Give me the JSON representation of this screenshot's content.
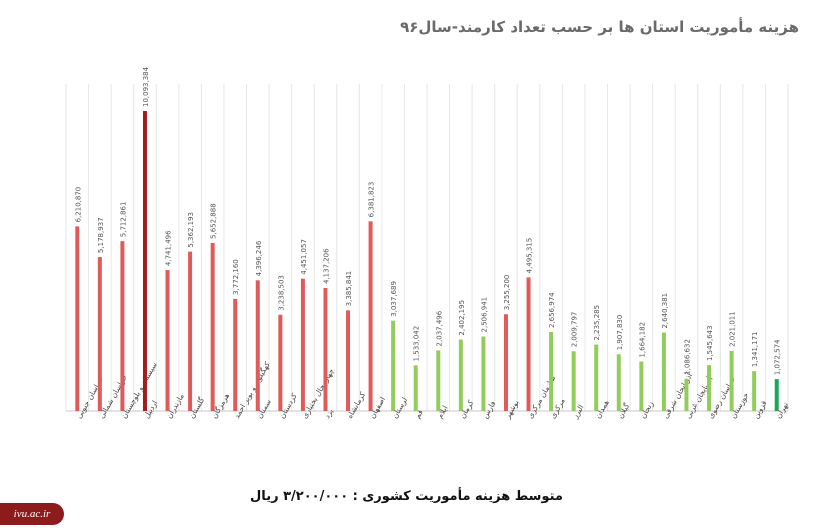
{
  "title": "هزینه مأموریت استان ها بر حسب تعداد کارمند-سال۹۶",
  "footer": "متوسط هزینه مأموریت کشوری : ۳/۲۰۰/۰۰۰ ریال",
  "logo_text": "ivu.ac.ir",
  "colors": {
    "above_avg": "#e05a5a",
    "max": "#a61b1b",
    "below_avg": "#92cc5c",
    "min": "#17a65a",
    "grid": "#e6e6e6",
    "axis": "#c8c8c8"
  },
  "chart_data": {
    "type": "bar",
    "title": "هزینه مأموریت استان ها بر حسب تعداد کارمند-سال۹۶",
    "xlabel": "",
    "ylabel": "",
    "ylim": [
      0,
      11000000
    ],
    "grid": "vertical",
    "legend": "none",
    "categories": [
      "خراسان جنوبی",
      "خراسان شمالی",
      "سیستان و بلوچستان",
      "اردبیل",
      "مازندران",
      "گلستان",
      "هرمزگان",
      "کهگیلویه و بویر احمد",
      "سمنان",
      "کردستان",
      "چهارمحال بختیاری",
      "یزد",
      "کرمانشاه",
      "اصفهان",
      "لرستان",
      "قم",
      "ایلام",
      "کرمان",
      "فارس",
      "بوشهر",
      "سازمان مرکزی",
      "مرکزی",
      "البرز",
      "همدان",
      "گیلان",
      "زنجان",
      "آذربایجان شرقی",
      "آذربایجان غربی",
      "خراسان رضوی",
      "خوزستان",
      "قزوین",
      "تهران"
    ],
    "values": [
      6210870,
      5178937,
      5712861,
      10093384,
      4741496,
      5362193,
      5652888,
      3772160,
      4396246,
      3238503,
      4451057,
      4137206,
      3385841,
      6381823,
      3037689,
      1533042,
      2037496,
      2402195,
      2506941,
      3255200,
      4495315,
      2656974,
      2009797,
      2235285,
      1907830,
      1664182,
      2640381,
      1086632,
      1545643,
      2021011,
      1341171,
      1072574
    ],
    "value_labels": [
      "6,210,870",
      "5,178,937",
      "5,712,861",
      "10,093,384",
      "4,741,496",
      "5,362,193",
      "5,652,888",
      "3,772,160",
      "4,396,246",
      "3,238,503",
      "4,451,057",
      "4,137,206",
      "3,385,841",
      "6,381,823",
      "3,037,689",
      "1,533,042",
      "2,037,496",
      "2,402,195",
      "2,506,941",
      "3,255,200",
      "4,495,315",
      "2,656,974",
      "2,009,797",
      "2,235,285",
      "1,907,830",
      "1,664,182",
      "2,640,381",
      "1,086,632",
      "1,545,643",
      "2,021,011",
      "1,341,171",
      "1,072,574"
    ],
    "bar_colors": [
      "#e05a5a",
      "#e05a5a",
      "#e05a5a",
      "#a61b1b",
      "#e05a5a",
      "#e05a5a",
      "#e05a5a",
      "#e05a5a",
      "#e05a5a",
      "#e05a5a",
      "#e05a5a",
      "#e05a5a",
      "#e05a5a",
      "#e05a5a",
      "#92cc5c",
      "#92cc5c",
      "#92cc5c",
      "#92cc5c",
      "#92cc5c",
      "#e05a5a",
      "#e05a5a",
      "#92cc5c",
      "#92cc5c",
      "#92cc5c",
      "#92cc5c",
      "#92cc5c",
      "#92cc5c",
      "#92cc5c",
      "#92cc5c",
      "#92cc5c",
      "#92cc5c",
      "#17a65a"
    ]
  }
}
